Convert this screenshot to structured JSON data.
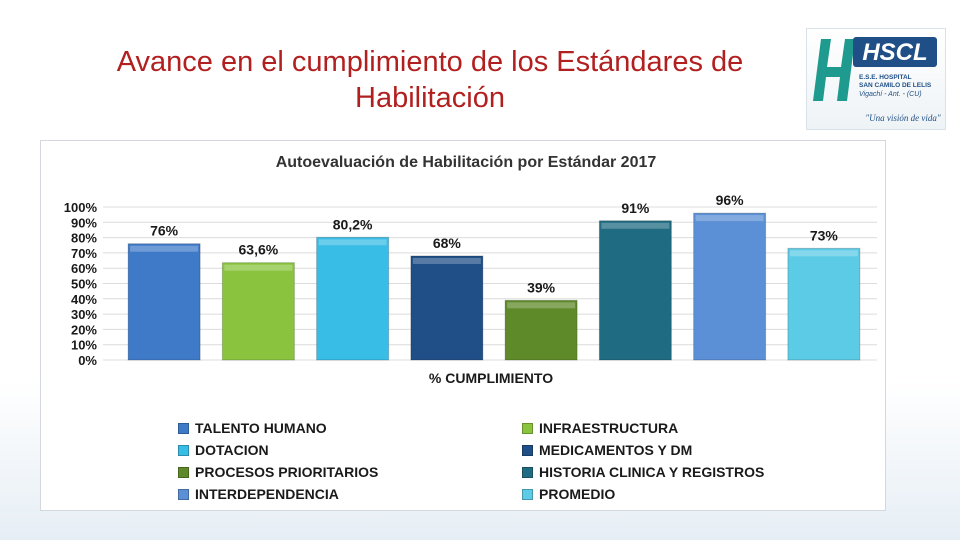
{
  "slide": {
    "title_line1": "Avance en el cumplimiento de los Estándares de",
    "title_line2": "Habilitación"
  },
  "logo": {
    "name": "HSCL",
    "subtitle1": "E.S.E. HOSPITAL",
    "subtitle2": "SAN CAMILO DE LELIS",
    "subtitle3": "Vigachí - Ant. - (CU)",
    "motto": "\"Una visión de vida\""
  },
  "chart_data": {
    "type": "bar",
    "title": "Autoevaluación de Habilitación por Estándar 2017",
    "xlabel": "% CUMPLIMIENTO",
    "ylabel": "",
    "ylim": [
      0,
      100
    ],
    "yticks": [
      "0%",
      "10%",
      "20%",
      "30%",
      "40%",
      "50%",
      "60%",
      "70%",
      "80%",
      "90%",
      "100%"
    ],
    "grid": true,
    "categories": [
      "TALENTO HUMANO",
      "INFRAESTRUCTURA",
      "DOTACION",
      "MEDICAMENTOS Y DM",
      "PROCESOS PRIORITARIOS",
      "HISTORIA CLINICA Y REGISTROS",
      "INTERDEPENDENCIA",
      "PROMEDIO"
    ],
    "values": [
      76,
      63.6,
      80.2,
      68,
      39,
      91,
      96,
      73
    ],
    "value_labels": [
      "76%",
      "63,6%",
      "80,2%",
      "68%",
      "39%",
      "91%",
      "96%",
      "73%"
    ],
    "colors": [
      "#3f7ac8",
      "#8ac43f",
      "#38bde6",
      "#1f4f86",
      "#5f8a2a",
      "#1f6b82",
      "#5b8fd6",
      "#5ccbe6"
    ],
    "legend_position": "bottom"
  }
}
